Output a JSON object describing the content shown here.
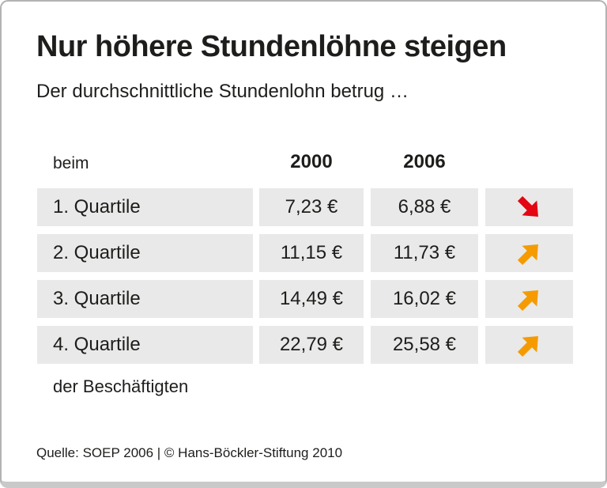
{
  "header": {
    "title": "Nur höhere Stundenlöhne steigen",
    "subtitle": "Der durchschnittliche Stundenlohn betrug …"
  },
  "table": {
    "row_label_header": "beim",
    "columns": [
      "2000",
      "2006"
    ],
    "rows": [
      {
        "label": "1. Quartile",
        "y2000": "7,23 €",
        "y2006": "6,88 €",
        "trend": "down"
      },
      {
        "label": "2. Quartile",
        "y2000": "11,15 €",
        "y2006": "11,73 €",
        "trend": "up"
      },
      {
        "label": "3. Quartile",
        "y2000": "14,49 €",
        "y2006": "16,02 €",
        "trend": "up"
      },
      {
        "label": "4. Quartile",
        "y2000": "22,79 €",
        "y2006": "25,58 €",
        "trend": "up"
      }
    ],
    "row_label_footer": "der Beschäftigten"
  },
  "footer": {
    "source": "Quelle: SOEP 2006 | © Hans-Böckler-Stiftung 2010"
  },
  "colors": {
    "up_arrow": "#f59b00",
    "down_arrow": "#e30613",
    "row_bg": "#e9e9e9",
    "text": "#1d1d1b",
    "border": "#b3b3b3",
    "bottom_bar": "#c9c9c9"
  },
  "icons": {
    "up": "trend-up-arrow-icon",
    "down": "trend-down-arrow-icon"
  },
  "chart_data": {
    "type": "table",
    "title": "Nur höhere Stundenlöhne steigen",
    "subtitle": "Der durchschnittliche Stundenlohn betrug …",
    "categories": [
      "1. Quartile",
      "2. Quartile",
      "3. Quartile",
      "4. Quartile"
    ],
    "series": [
      {
        "name": "2000",
        "values": [
          7.23,
          11.15,
          14.49,
          22.79
        ]
      },
      {
        "name": "2006",
        "values": [
          6.88,
          11.73,
          16.02,
          25.58
        ]
      }
    ],
    "unit": "€",
    "trend_per_category": [
      "down",
      "up",
      "up",
      "up"
    ],
    "note": "der Beschäftigten",
    "source": "Quelle: SOEP 2006 | © Hans-Böckler-Stiftung 2010"
  }
}
